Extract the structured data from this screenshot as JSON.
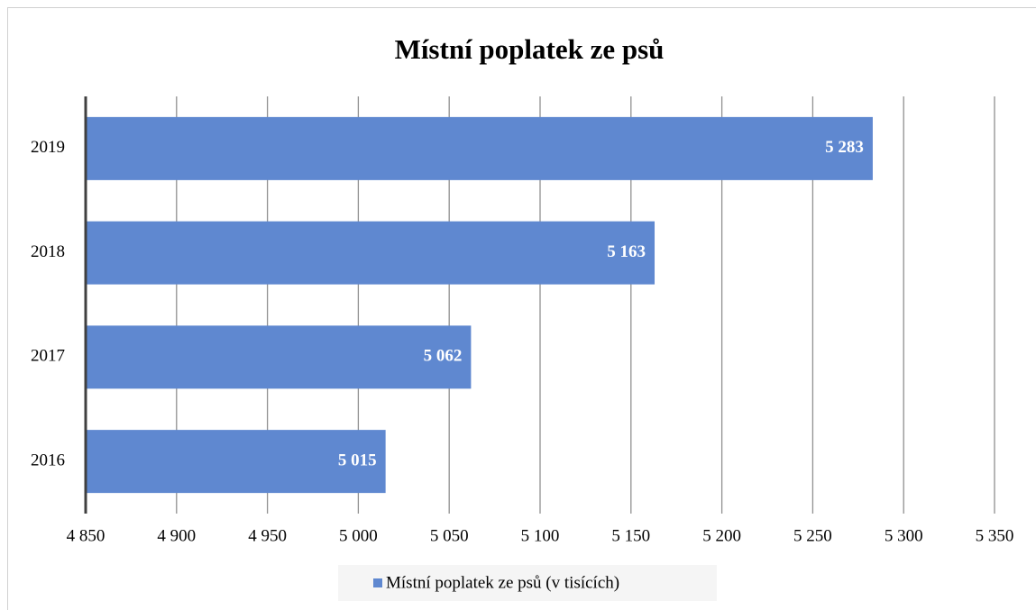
{
  "chart_data": {
    "type": "bar",
    "orientation": "horizontal",
    "title": "Místní poplatek ze psů",
    "categories": [
      "2016",
      "2017",
      "2018",
      "2019"
    ],
    "series": [
      {
        "name": "Místní poplatek ze psů (v tisících)",
        "color": "#5f88d0",
        "values": [
          5015,
          5062,
          5163,
          5283
        ],
        "value_labels": [
          "5 015",
          "5 062",
          "5 163",
          "5 283"
        ]
      }
    ],
    "xlim": [
      4850,
      5350
    ],
    "xticks": [
      {
        "value": 4850,
        "label": "4 850"
      },
      {
        "value": 4900,
        "label": "4 900"
      },
      {
        "value": 4950,
        "label": "4 950"
      },
      {
        "value": 5000,
        "label": "5 000"
      },
      {
        "value": 5050,
        "label": "5 050"
      },
      {
        "value": 5100,
        "label": "5 100"
      },
      {
        "value": 5150,
        "label": "5 150"
      },
      {
        "value": 5200,
        "label": "5 200"
      },
      {
        "value": 5250,
        "label": "5 250"
      },
      {
        "value": 5300,
        "label": "5 300"
      },
      {
        "value": 5350,
        "label": "5 350"
      }
    ],
    "grid": true,
    "legend": "bottom"
  }
}
